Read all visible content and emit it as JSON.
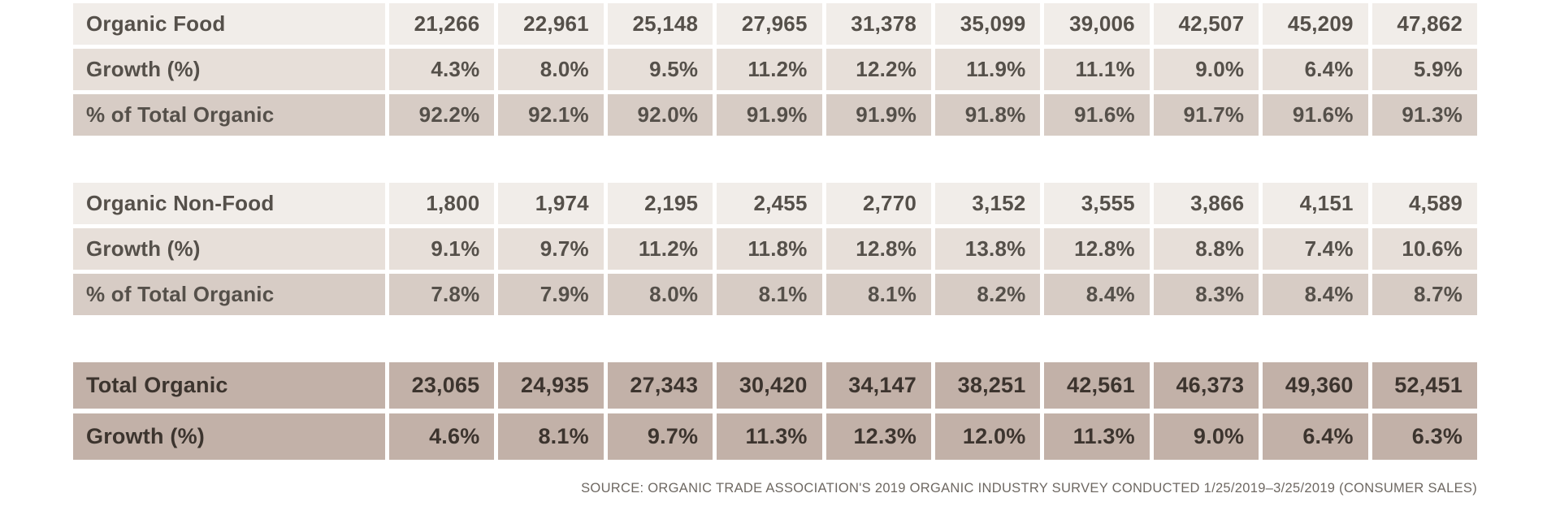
{
  "colors": {
    "background": "#ffffff",
    "row_light": "#f1ede9",
    "row_medium": "#e7dfd9",
    "row_dark": "#d7ccc5",
    "row_total": "#c2b1a8",
    "text_normal": "#55504a",
    "text_total": "#3c342e",
    "source_text": "#6e6862"
  },
  "source_note": "SOURCE: ORGANIC TRADE ASSOCIATION'S 2019 ORGANIC INDUSTRY SURVEY CONDUCTED 1/25/2019–3/25/2019 (CONSUMER SALES)",
  "chart_data": {
    "type": "table",
    "columns": 10,
    "sections": [
      {
        "id": "organic-food",
        "rows": [
          {
            "label": "Organic Food",
            "shade": "light",
            "values": [
              "21,266",
              "22,961",
              "25,148",
              "27,965",
              "31,378",
              "35,099",
              "39,006",
              "42,507",
              "45,209",
              "47,862"
            ]
          },
          {
            "label": "Growth (%)",
            "shade": "medium",
            "values": [
              "4.3%",
              "8.0%",
              "9.5%",
              "11.2%",
              "12.2%",
              "11.9%",
              "11.1%",
              "9.0%",
              "6.4%",
              "5.9%"
            ]
          },
          {
            "label": "% of Total Organic",
            "shade": "dark",
            "values": [
              "92.2%",
              "92.1%",
              "92.0%",
              "91.9%",
              "91.9%",
              "91.8%",
              "91.6%",
              "91.7%",
              "91.6%",
              "91.3%"
            ]
          }
        ]
      },
      {
        "id": "organic-non-food",
        "rows": [
          {
            "label": "Organic Non-Food",
            "shade": "light",
            "values": [
              "1,800",
              "1,974",
              "2,195",
              "2,455",
              "2,770",
              "3,152",
              "3,555",
              "3,866",
              "4,151",
              "4,589"
            ]
          },
          {
            "label": "Growth (%)",
            "shade": "medium",
            "values": [
              "9.1%",
              "9.7%",
              "11.2%",
              "11.8%",
              "12.8%",
              "13.8%",
              "12.8%",
              "8.8%",
              "7.4%",
              "10.6%"
            ]
          },
          {
            "label": "% of Total Organic",
            "shade": "dark",
            "values": [
              "7.8%",
              "7.9%",
              "8.0%",
              "8.1%",
              "8.1%",
              "8.2%",
              "8.4%",
              "8.3%",
              "8.4%",
              "8.7%"
            ]
          }
        ]
      },
      {
        "id": "total-organic",
        "totals": true,
        "rows": [
          {
            "label": "Total Organic",
            "shade": "total",
            "values": [
              "23,065",
              "24,935",
              "27,343",
              "30,420",
              "34,147",
              "38,251",
              "42,561",
              "46,373",
              "49,360",
              "52,451"
            ]
          },
          {
            "label": "Growth (%)",
            "shade": "total",
            "values": [
              "4.6%",
              "8.1%",
              "9.7%",
              "11.3%",
              "12.3%",
              "12.0%",
              "11.3%",
              "9.0%",
              "6.4%",
              "6.3%"
            ]
          }
        ]
      }
    ]
  }
}
